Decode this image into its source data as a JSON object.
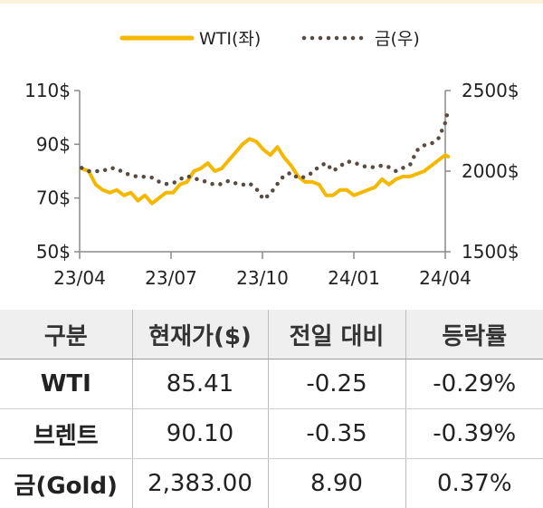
{
  "chart_data": {
    "type": "line",
    "title": "",
    "legend": {
      "placement": "top-center"
    },
    "x_ticks": [
      "23/04",
      "23/07",
      "23/10",
      "24/01",
      "24/04"
    ],
    "y_left": {
      "ticks": [
        "110$",
        "90$",
        "70$",
        "50$"
      ],
      "range": [
        50,
        110
      ]
    },
    "y_right": {
      "ticks": [
        "2500$",
        "2000$",
        "1500$"
      ],
      "range": [
        1500,
        2500
      ]
    },
    "grid": false,
    "series": [
      {
        "name": "WTI(좌)",
        "axis": "left",
        "style": "solid",
        "color": "#f5b800",
        "points": [
          [
            "23/04/03",
            81
          ],
          [
            "23/04/10",
            80
          ],
          [
            "23/04/17",
            75
          ],
          [
            "23/04/24",
            73
          ],
          [
            "23/05/01",
            72
          ],
          [
            "23/05/08",
            73
          ],
          [
            "23/05/15",
            71
          ],
          [
            "23/05/22",
            72
          ],
          [
            "23/05/29",
            69
          ],
          [
            "23/06/05",
            71
          ],
          [
            "23/06/12",
            68
          ],
          [
            "23/06/19",
            70
          ],
          [
            "23/06/26",
            72
          ],
          [
            "23/07/03",
            72
          ],
          [
            "23/07/10",
            75
          ],
          [
            "23/07/17",
            76
          ],
          [
            "23/07/24",
            80
          ],
          [
            "23/07/31",
            81
          ],
          [
            "23/08/07",
            83
          ],
          [
            "23/08/14",
            80
          ],
          [
            "23/08/21",
            81
          ],
          [
            "23/08/28",
            84
          ],
          [
            "23/09/04",
            87
          ],
          [
            "23/09/11",
            90
          ],
          [
            "23/09/18",
            92
          ],
          [
            "23/09/25",
            91
          ],
          [
            "23/10/02",
            88
          ],
          [
            "23/10/09",
            86
          ],
          [
            "23/10/16",
            89
          ],
          [
            "23/10/23",
            85
          ],
          [
            "23/10/30",
            82
          ],
          [
            "23/11/06",
            78
          ],
          [
            "23/11/13",
            76
          ],
          [
            "23/11/20",
            76
          ],
          [
            "23/11/27",
            75
          ],
          [
            "23/12/04",
            71
          ],
          [
            "23/12/11",
            71
          ],
          [
            "23/12/18",
            73
          ],
          [
            "23/12/25",
            73
          ],
          [
            "24/01/01",
            71
          ],
          [
            "24/01/08",
            72
          ],
          [
            "24/01/15",
            73
          ],
          [
            "24/01/22",
            74
          ],
          [
            "24/01/29",
            77
          ],
          [
            "24/02/05",
            75
          ],
          [
            "24/02/12",
            77
          ],
          [
            "24/02/19",
            78
          ],
          [
            "24/02/26",
            78
          ],
          [
            "24/03/04",
            79
          ],
          [
            "24/03/11",
            80
          ],
          [
            "24/03/18",
            82
          ],
          [
            "24/03/25",
            84
          ],
          [
            "24/04/01",
            86
          ],
          [
            "24/04/04",
            85.41
          ]
        ]
      },
      {
        "name": "금(우)",
        "axis": "right",
        "style": "dotted",
        "color": "#594a42",
        "points": [
          [
            "23/04/03",
            2020
          ],
          [
            "23/04/10",
            2000
          ],
          [
            "23/04/17",
            2000
          ],
          [
            "23/04/24",
            2000
          ],
          [
            "23/05/01",
            2020
          ],
          [
            "23/05/08",
            2015
          ],
          [
            "23/05/15",
            1990
          ],
          [
            "23/05/22",
            1975
          ],
          [
            "23/05/29",
            1965
          ],
          [
            "23/06/05",
            1965
          ],
          [
            "23/06/12",
            1960
          ],
          [
            "23/06/19",
            1935
          ],
          [
            "23/06/26",
            1920
          ],
          [
            "23/07/03",
            1925
          ],
          [
            "23/07/10",
            1950
          ],
          [
            "23/07/17",
            1970
          ],
          [
            "23/07/24",
            1955
          ],
          [
            "23/07/31",
            1945
          ],
          [
            "23/08/07",
            1930
          ],
          [
            "23/08/14",
            1915
          ],
          [
            "23/08/21",
            1920
          ],
          [
            "23/08/28",
            1940
          ],
          [
            "23/09/04",
            1925
          ],
          [
            "23/09/11",
            1915
          ],
          [
            "23/09/18",
            1925
          ],
          [
            "23/09/25",
            1890
          ],
          [
            "23/10/02",
            1825
          ],
          [
            "23/10/09",
            1860
          ],
          [
            "23/10/16",
            1920
          ],
          [
            "23/10/23",
            1975
          ],
          [
            "23/10/30",
            1990
          ],
          [
            "23/11/06",
            1955
          ],
          [
            "23/11/13",
            1965
          ],
          [
            "23/11/20",
            1990
          ],
          [
            "23/11/27",
            2030
          ],
          [
            "23/12/04",
            2050
          ],
          [
            "23/12/11",
            2000
          ],
          [
            "23/12/18",
            2030
          ],
          [
            "23/12/25",
            2060
          ],
          [
            "24/01/01",
            2055
          ],
          [
            "24/01/08",
            2035
          ],
          [
            "24/01/15",
            2025
          ],
          [
            "24/01/22",
            2025
          ],
          [
            "24/01/29",
            2035
          ],
          [
            "24/02/05",
            2025
          ],
          [
            "24/02/12",
            2000
          ],
          [
            "24/02/19",
            2020
          ],
          [
            "24/02/26",
            2040
          ],
          [
            "24/03/04",
            2130
          ],
          [
            "24/03/11",
            2160
          ],
          [
            "24/03/18",
            2170
          ],
          [
            "24/03/25",
            2200
          ],
          [
            "24/04/01",
            2300
          ],
          [
            "24/04/04",
            2383
          ]
        ]
      }
    ]
  },
  "table": {
    "headers": [
      "구분",
      "현재가($)",
      "전일 대비",
      "등락률"
    ],
    "rows": [
      [
        "WTI",
        "85.41",
        "-0.25",
        "-0.29%"
      ],
      [
        "브렌트",
        "90.10",
        "-0.35",
        "-0.39%"
      ],
      [
        "금(Gold)",
        "2,383.00",
        "8.90",
        "0.37%"
      ]
    ]
  }
}
